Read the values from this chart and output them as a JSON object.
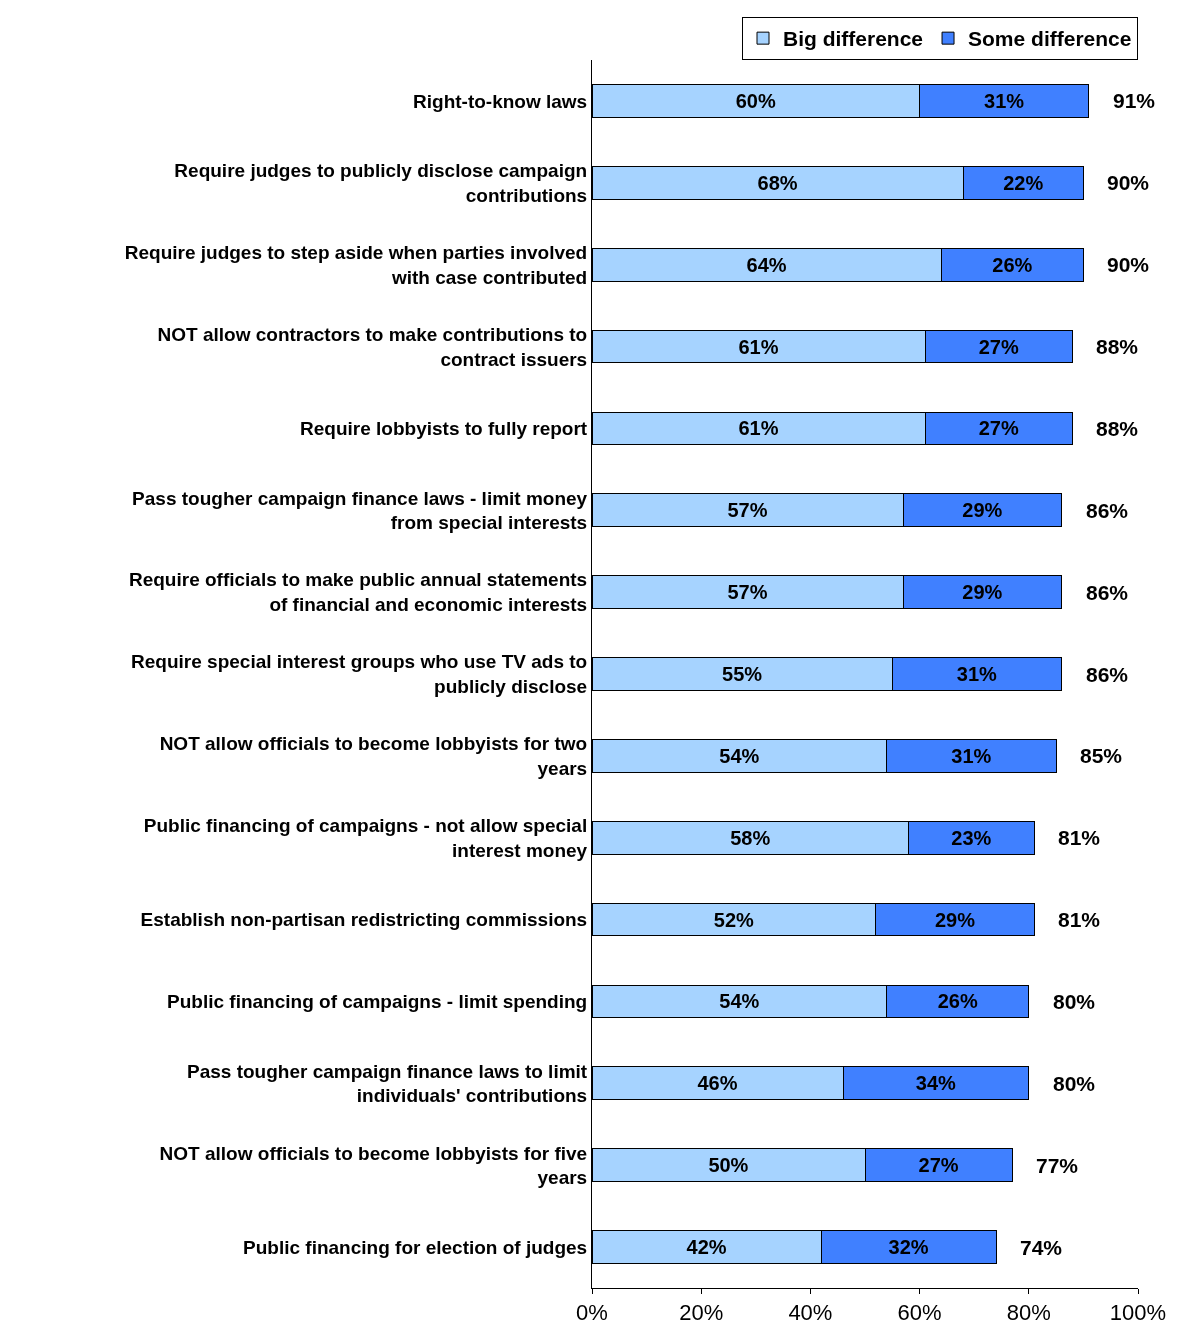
{
  "chart_data": {
    "type": "bar",
    "orientation": "horizontal",
    "stacked": true,
    "categories": [
      "Right-to-know laws",
      "Require judges to publicly disclose campaign contributions",
      "Require judges to step aside when parties involved with case contributed",
      "NOT allow contractors to make contributions to contract issuers",
      "Require lobbyists to fully report",
      "Pass tougher campaign finance laws - limit money from special interests",
      "Require officials to make public annual statements of financial and economic interests",
      "Require special interest groups who use TV ads to publicly disclose",
      "NOT allow officials to become lobbyists for two years",
      "Public financing of campaigns - not allow special interest money",
      "Establish non-partisan redistricting commissions",
      "Public financing of campaigns - limit spending",
      "Pass tougher campaign finance laws to limit individuals' contributions",
      "NOT allow officials to become lobbyists for five years",
      "Public financing for election of judges"
    ],
    "series": [
      {
        "name": "Big difference",
        "color": "#a6d3ff",
        "values": [
          60,
          68,
          64,
          61,
          61,
          57,
          57,
          55,
          54,
          58,
          52,
          54,
          46,
          50,
          42
        ],
        "value_labels": [
          "60%",
          "68%",
          "64%",
          "61%",
          "61%",
          "57%",
          "57%",
          "55%",
          "54%",
          "58%",
          "52%",
          "54%",
          "46%",
          "50%",
          "42%"
        ]
      },
      {
        "name": "Some difference",
        "color": "#4080ff",
        "values": [
          31,
          22,
          26,
          27,
          27,
          29,
          29,
          31,
          31,
          23,
          29,
          26,
          34,
          27,
          32
        ],
        "value_labels": [
          "31%",
          "22%",
          "26%",
          "27%",
          "27%",
          "29%",
          "29%",
          "31%",
          "31%",
          "23%",
          "29%",
          "26%",
          "34%",
          "27%",
          "32%"
        ]
      }
    ],
    "totals": [
      "91%",
      "90%",
      "90%",
      "88%",
      "88%",
      "86%",
      "86%",
      "86%",
      "85%",
      "81%",
      "81%",
      "80%",
      "80%",
      "77%",
      "74%"
    ],
    "xlim": [
      0,
      100
    ],
    "xticks": [
      {
        "value": 0,
        "label": "0%"
      },
      {
        "value": 20,
        "label": "20%"
      },
      {
        "value": 40,
        "label": "40%"
      },
      {
        "value": 60,
        "label": "60%"
      },
      {
        "value": 80,
        "label": "80%"
      },
      {
        "value": 100,
        "label": "100%"
      }
    ],
    "legend": "top right"
  }
}
